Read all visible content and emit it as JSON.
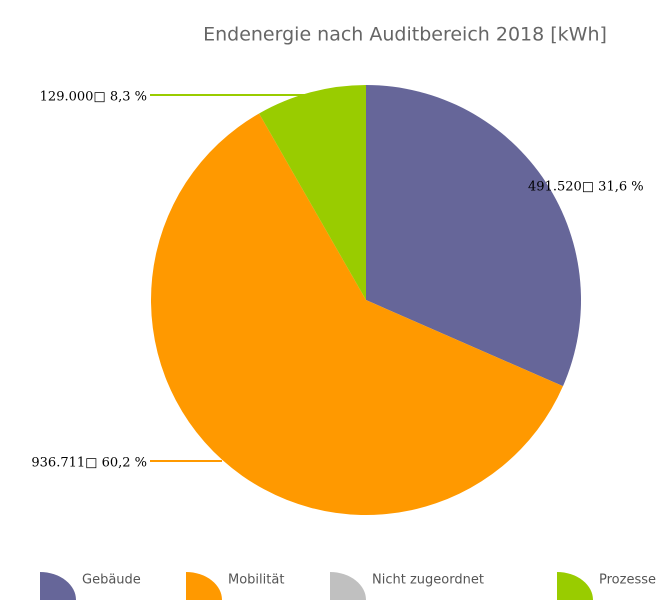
{
  "chart_data": {
    "type": "pie",
    "title": "Endenergie nach Auditbereich 2018 [kWh]",
    "categories": [
      "Gebäude",
      "Mobilität",
      "Nicht zugeordnet",
      "Prozesse"
    ],
    "values": [
      491520,
      936711,
      0,
      129000
    ],
    "value_labels": [
      "491.520□ 31,6 %",
      "936.711□ 60,2 %",
      null,
      "129.000□ 8,3 %"
    ],
    "colors": [
      "#666699",
      "#ff9900",
      "#c0c0c0",
      "#99cc00"
    ],
    "legend": "bottom"
  }
}
